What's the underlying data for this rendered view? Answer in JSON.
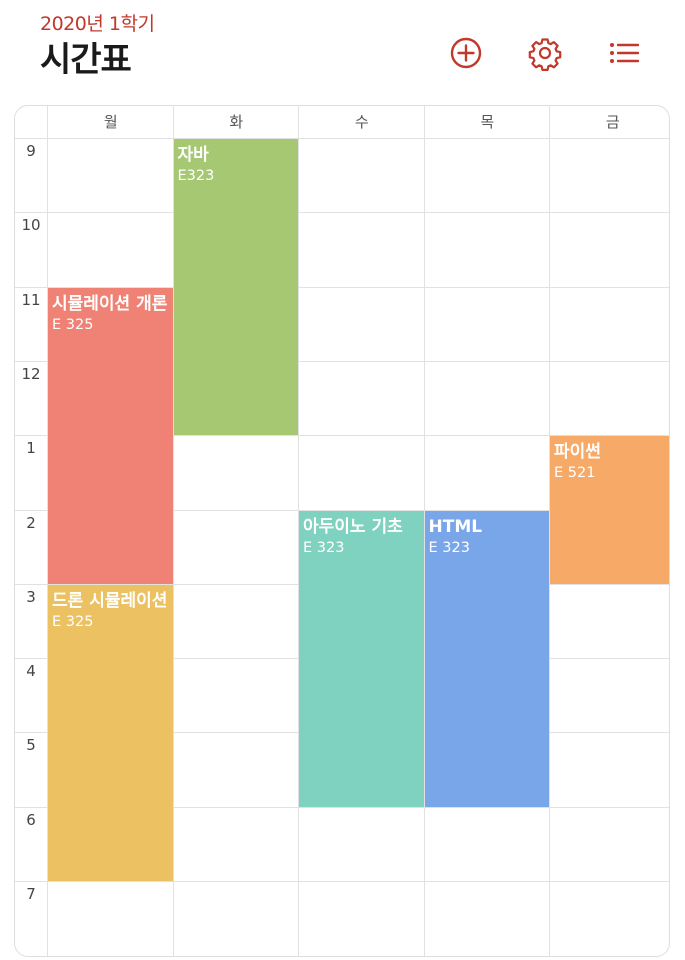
{
  "header": {
    "semester": "2020년 1학기",
    "title": "시간표",
    "icons": [
      "add-circle-icon",
      "gear-icon",
      "list-icon"
    ],
    "accent_color": "#c0392b"
  },
  "timetable": {
    "days": [
      "월",
      "화",
      "수",
      "목",
      "금"
    ],
    "hours": [
      "9",
      "10",
      "11",
      "12",
      "1",
      "2",
      "3",
      "4",
      "5",
      "6",
      "7"
    ],
    "events": [
      {
        "title": "자바",
        "room": "E323",
        "day": "화",
        "start": "9",
        "end": "1",
        "color": "#a7c872"
      },
      {
        "title": "시뮬레이션 개론",
        "room": "E 325",
        "day": "월",
        "start": "11",
        "end": "3",
        "color": "#ef8274"
      },
      {
        "title": "드론 시뮬레이션",
        "room": "E 325",
        "day": "월",
        "start": "3",
        "end": "7",
        "color": "#ebc162"
      },
      {
        "title": "아두이노 기초",
        "room": "E 323",
        "day": "수",
        "start": "2",
        "end": "6",
        "color": "#7fd1c0"
      },
      {
        "title": "HTML",
        "room": "E 323",
        "day": "목",
        "start": "2",
        "end": "6",
        "color": "#79a5e9"
      },
      {
        "title": "파이썬",
        "room": "E 521",
        "day": "금",
        "start": "1",
        "end": "3",
        "color": "#f7aa67"
      }
    ]
  }
}
